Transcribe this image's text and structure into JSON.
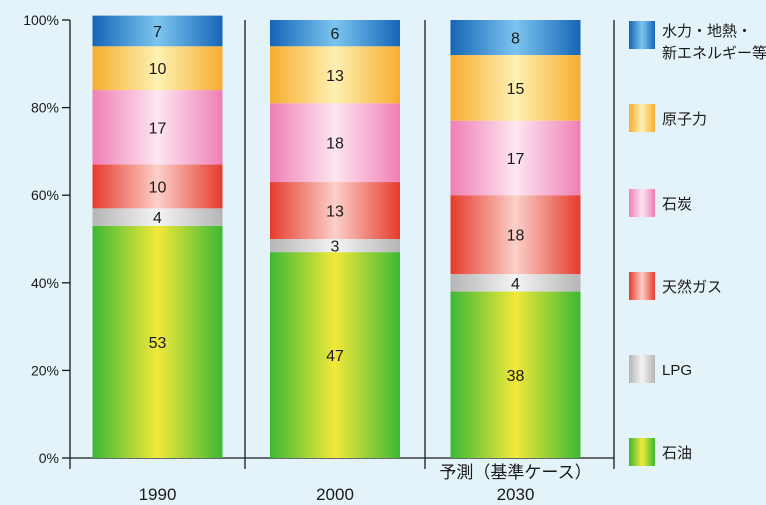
{
  "chart_data": {
    "type": "bar",
    "stacked": true,
    "categories": [
      "1990",
      "2000",
      "2030"
    ],
    "category_annotations": {
      "2030": "予測（基準ケース）"
    },
    "y_ticks": [
      "0%",
      "20%",
      "40%",
      "60%",
      "80%",
      "100%"
    ],
    "ylim": [
      0,
      100
    ],
    "series": [
      {
        "name": "石油",
        "values": [
          53,
          47,
          38
        ],
        "color": "#3cb834",
        "color_mid": "#f2e93a"
      },
      {
        "name": "LPG",
        "values": [
          4,
          3,
          4
        ],
        "color": "#b5b5b5",
        "color_mid": "#f4f4f4"
      },
      {
        "name": "天然ガス",
        "values": [
          10,
          13,
          18
        ],
        "color": "#e53b2c",
        "color_mid": "#fbd0c9"
      },
      {
        "name": "石炭",
        "values": [
          17,
          18,
          17
        ],
        "color": "#ef7fb5",
        "color_mid": "#fde6f1"
      },
      {
        "name": "原子力",
        "values": [
          10,
          13,
          15
        ],
        "color": "#f7ad2f",
        "color_mid": "#fdf1b2"
      },
      {
        "name": "水力・地熱・新エネルギー等",
        "legend_lines": [
          "水力・地熱・",
          "新エネルギー等"
        ],
        "values": [
          7,
          6,
          8
        ],
        "color": "#1565b7",
        "color_mid": "#7cc5f0"
      }
    ],
    "legend_position": "right",
    "background_color": "#e4f3f9",
    "grid": false
  }
}
